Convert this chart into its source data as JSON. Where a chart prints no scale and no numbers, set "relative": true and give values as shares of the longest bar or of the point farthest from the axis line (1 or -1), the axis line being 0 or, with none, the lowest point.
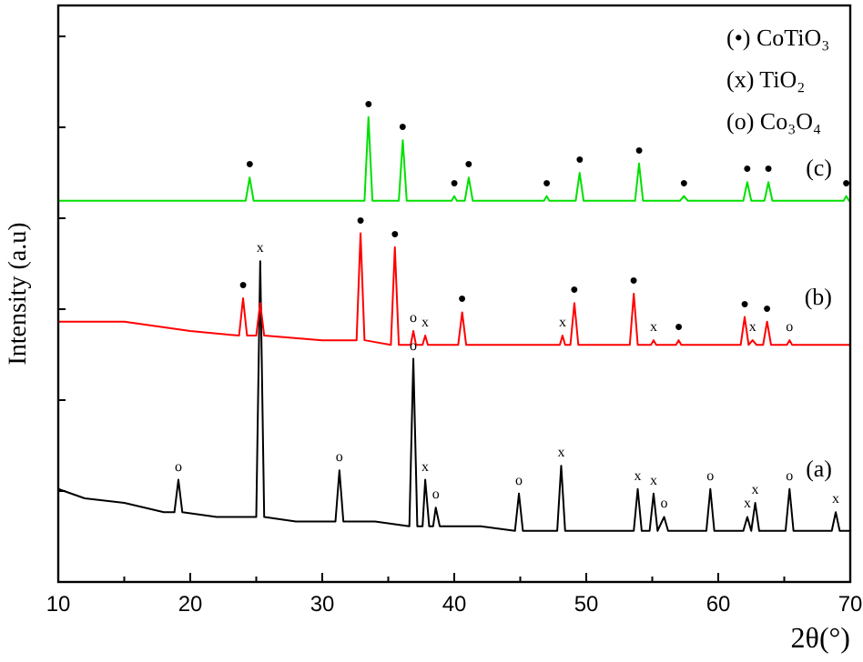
{
  "chart_data": {
    "type": "line",
    "relative": true,
    "xlabel": "2θ(°)",
    "ylabel": "Intensity (a.u)",
    "xlim": [
      10,
      70
    ],
    "xticks": [
      10,
      {
        "value": 15,
        "label": null
      },
      20,
      {
        "value": 25,
        "label": null
      },
      30,
      {
        "value": 35,
        "label": null
      },
      40,
      {
        "value": 45,
        "label": null
      },
      50,
      {
        "value": 55,
        "label": null
      },
      60,
      {
        "value": 65,
        "label": null
      },
      70
    ],
    "series": [
      {
        "color": "#000000",
        "x": [
          10,
          12,
          15,
          18,
          18.8,
          19.1,
          19.4,
          22,
          25.0,
          25.3,
          25.6,
          28,
          31.0,
          31.3,
          31.6,
          34,
          36.6,
          36.9,
          37.2,
          37.6,
          37.8,
          38.1,
          38.4,
          38.6,
          38.9,
          42,
          44.6,
          44.9,
          45.2,
          47.8,
          48.1,
          48.4,
          53.6,
          53.9,
          54.2,
          54.8,
          55.1,
          55.4,
          55.9,
          56.2,
          59.1,
          59.4,
          59.7,
          61.9,
          62.2,
          62.5,
          62.8,
          63.1,
          65.1,
          65.4,
          65.7,
          68.6,
          68.9,
          69.2,
          70
        ],
        "values": [
          0.2,
          0.18,
          0.17,
          0.15,
          0.15,
          0.22,
          0.15,
          0.14,
          0.14,
          0.69,
          0.14,
          0.13,
          0.13,
          0.24,
          0.13,
          0.13,
          0.12,
          0.48,
          0.12,
          0.12,
          0.22,
          0.12,
          0.12,
          0.16,
          0.12,
          0.12,
          0.11,
          0.19,
          0.11,
          0.11,
          0.25,
          0.11,
          0.11,
          0.2,
          0.11,
          0.11,
          0.19,
          0.11,
          0.14,
          0.11,
          0.11,
          0.2,
          0.11,
          0.11,
          0.14,
          0.11,
          0.17,
          0.11,
          0.11,
          0.2,
          0.11,
          0.11,
          0.15,
          0.11,
          0.11
        ]
      },
      {
        "color": "#ff0000",
        "x": [
          10,
          15,
          20,
          23.7,
          24.0,
          24.3,
          25.0,
          25.3,
          25.6,
          30,
          32.6,
          32.9,
          33.2,
          35.2,
          35.5,
          35.8,
          36.7,
          36.9,
          37.1,
          37.6,
          37.8,
          38.0,
          40.3,
          40.6,
          40.9,
          48.0,
          48.2,
          48.4,
          48.8,
          49.1,
          49.4,
          53.3,
          53.6,
          53.9,
          54.9,
          55.1,
          55.3,
          56.8,
          57.0,
          57.2,
          61.7,
          62.0,
          62.3,
          62.6,
          62.9,
          63.4,
          63.7,
          64,
          65.2,
          65.4,
          65.6,
          70
        ],
        "values": [
          0.56,
          0.56,
          0.54,
          0.53,
          0.61,
          0.53,
          0.53,
          0.6,
          0.53,
          0.52,
          0.52,
          0.75,
          0.52,
          0.51,
          0.72,
          0.51,
          0.51,
          0.54,
          0.51,
          0.51,
          0.53,
          0.51,
          0.51,
          0.58,
          0.51,
          0.51,
          0.53,
          0.51,
          0.51,
          0.6,
          0.51,
          0.51,
          0.62,
          0.51,
          0.51,
          0.52,
          0.51,
          0.51,
          0.52,
          0.51,
          0.51,
          0.57,
          0.51,
          0.52,
          0.51,
          0.51,
          0.56,
          0.51,
          0.51,
          0.52,
          0.51,
          0.51
        ]
      },
      {
        "color": "#00e000",
        "x": [
          10,
          24.2,
          24.5,
          24.8,
          33.2,
          33.5,
          33.8,
          35.8,
          36.1,
          36.4,
          39.8,
          40.0,
          40.2,
          40.8,
          41.1,
          41.4,
          46.8,
          47.0,
          47.2,
          49.2,
          49.5,
          49.8,
          53.7,
          54.0,
          54.3,
          57.1,
          57.4,
          57.7,
          61.9,
          62.2,
          62.5,
          63.5,
          63.8,
          64.1,
          69.5,
          69.7,
          69.9,
          70
        ],
        "values": [
          0.82,
          0.82,
          0.87,
          0.82,
          0.82,
          1.0,
          0.82,
          0.82,
          0.95,
          0.82,
          0.82,
          0.83,
          0.82,
          0.82,
          0.87,
          0.82,
          0.82,
          0.83,
          0.82,
          0.82,
          0.88,
          0.82,
          0.82,
          0.9,
          0.82,
          0.82,
          0.83,
          0.82,
          0.82,
          0.86,
          0.82,
          0.82,
          0.86,
          0.82,
          0.82,
          0.83,
          0.82,
          0.82
        ]
      }
    ],
    "annotations": [
      "(•) CoTiO₃",
      "(x) TiO₂",
      "(o) Co₃O₄",
      "(a)",
      "(b)",
      "(c)",
      {
        "text": "o",
        "x": 19.1,
        "y": 0.22
      },
      {
        "text": "x",
        "x": 25.3,
        "y": 0.69
      },
      {
        "text": "o",
        "x": 31.3,
        "y": 0.24
      },
      {
        "text": "o",
        "x": 36.9,
        "y": 0.48
      },
      {
        "text": "x",
        "x": 37.8,
        "y": 0.22
      },
      {
        "text": "o",
        "x": 38.6,
        "y": 0.16
      },
      {
        "text": "o",
        "x": 44.9,
        "y": 0.19
      },
      {
        "text": "x",
        "x": 48.1,
        "y": 0.25
      },
      {
        "text": "x",
        "x": 53.9,
        "y": 0.2
      },
      {
        "text": "x",
        "x": 55.1,
        "y": 0.19
      },
      {
        "text": "o",
        "x": 55.9,
        "y": 0.14
      },
      {
        "text": "o",
        "x": 59.4,
        "y": 0.2
      },
      {
        "text": "x",
        "x": 62.2,
        "y": 0.14
      },
      {
        "text": "x",
        "x": 62.8,
        "y": 0.17
      },
      {
        "text": "o",
        "x": 65.4,
        "y": 0.2
      },
      {
        "text": "x",
        "x": 68.9,
        "y": 0.15
      },
      {
        "text": "●",
        "x": 24.0,
        "y": 0.61
      },
      {
        "text": "●",
        "x": 32.9,
        "y": 0.75
      },
      {
        "text": "●",
        "x": 35.5,
        "y": 0.72
      },
      {
        "text": "o",
        "x": 36.9,
        "y": 0.54
      },
      {
        "text": "x",
        "x": 37.8,
        "y": 0.53
      },
      {
        "text": "●",
        "x": 40.6,
        "y": 0.58
      },
      {
        "text": "x",
        "x": 48.2,
        "y": 0.53
      },
      {
        "text": "●",
        "x": 49.1,
        "y": 0.6
      },
      {
        "text": "●",
        "x": 53.6,
        "y": 0.62
      },
      {
        "text": "x",
        "x": 55.1,
        "y": 0.52
      },
      {
        "text": "●",
        "x": 57.0,
        "y": 0.52
      },
      {
        "text": "●",
        "x": 62.0,
        "y": 0.57
      },
      {
        "text": "x",
        "x": 62.6,
        "y": 0.52
      },
      {
        "text": "●",
        "x": 63.7,
        "y": 0.56
      },
      {
        "text": "o",
        "x": 65.4,
        "y": 0.52
      },
      {
        "text": "●",
        "x": 24.5,
        "y": 0.87
      },
      {
        "text": "●",
        "x": 33.5,
        "y": 1.0
      },
      {
        "text": "●",
        "x": 36.1,
        "y": 0.95
      },
      {
        "text": "●",
        "x": 40.0,
        "y": 0.83
      },
      {
        "text": "●",
        "x": 41.1,
        "y": 0.87
      },
      {
        "text": "●",
        "x": 47.0,
        "y": 0.83
      },
      {
        "text": "●",
        "x": 49.5,
        "y": 0.88
      },
      {
        "text": "●",
        "x": 54.0,
        "y": 0.9
      },
      {
        "text": "●",
        "x": 57.4,
        "y": 0.83
      },
      {
        "text": "●",
        "x": 62.2,
        "y": 0.86
      },
      {
        "text": "●",
        "x": 63.8,
        "y": 0.86
      },
      {
        "text": "●",
        "x": 69.7,
        "y": 0.83
      }
    ]
  }
}
